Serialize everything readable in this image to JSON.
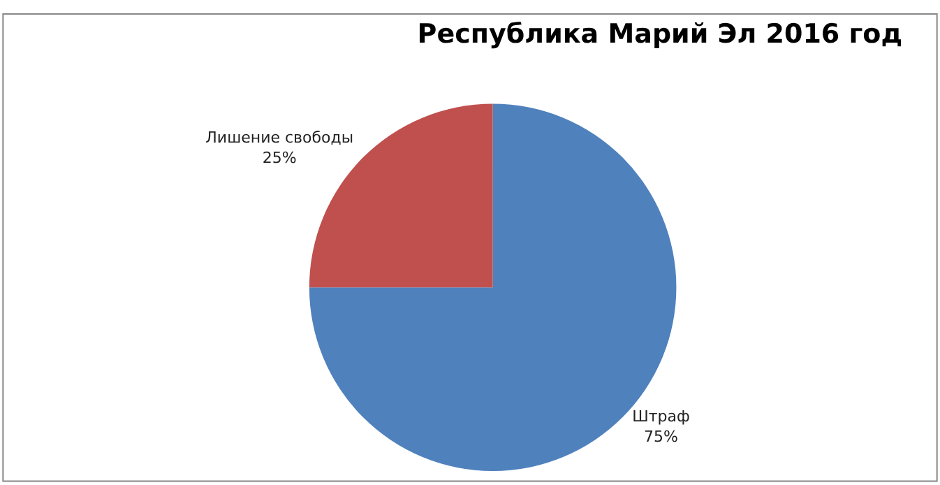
{
  "chart_data": {
    "type": "pie",
    "title": "Республика Марий Эл 2016 год",
    "categories": [
      "Штраф",
      "Лишение свободы"
    ],
    "values": [
      75,
      25
    ],
    "value_labels": [
      "75%",
      "25%"
    ],
    "colors": [
      "#4f81bd",
      "#c0504d"
    ],
    "legend": false
  }
}
